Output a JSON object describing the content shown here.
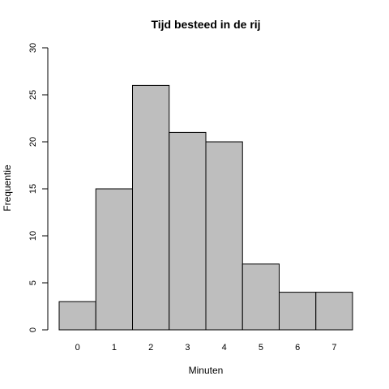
{
  "chart_data": {
    "type": "bar",
    "title": "Tijd besteed in de rij",
    "xlabel": "Minuten",
    "ylabel": "Frequentie",
    "categories": [
      "0",
      "1",
      "2",
      "3",
      "4",
      "5",
      "6",
      "7"
    ],
    "values": [
      3,
      15,
      26,
      21,
      20,
      7,
      4,
      4
    ],
    "ylim": [
      0,
      30
    ],
    "yticks": [
      0,
      5,
      10,
      15,
      20,
      25,
      30
    ],
    "bar_color": "#bebebe",
    "edge_color": "#000000",
    "grid": false,
    "legend": "none"
  }
}
